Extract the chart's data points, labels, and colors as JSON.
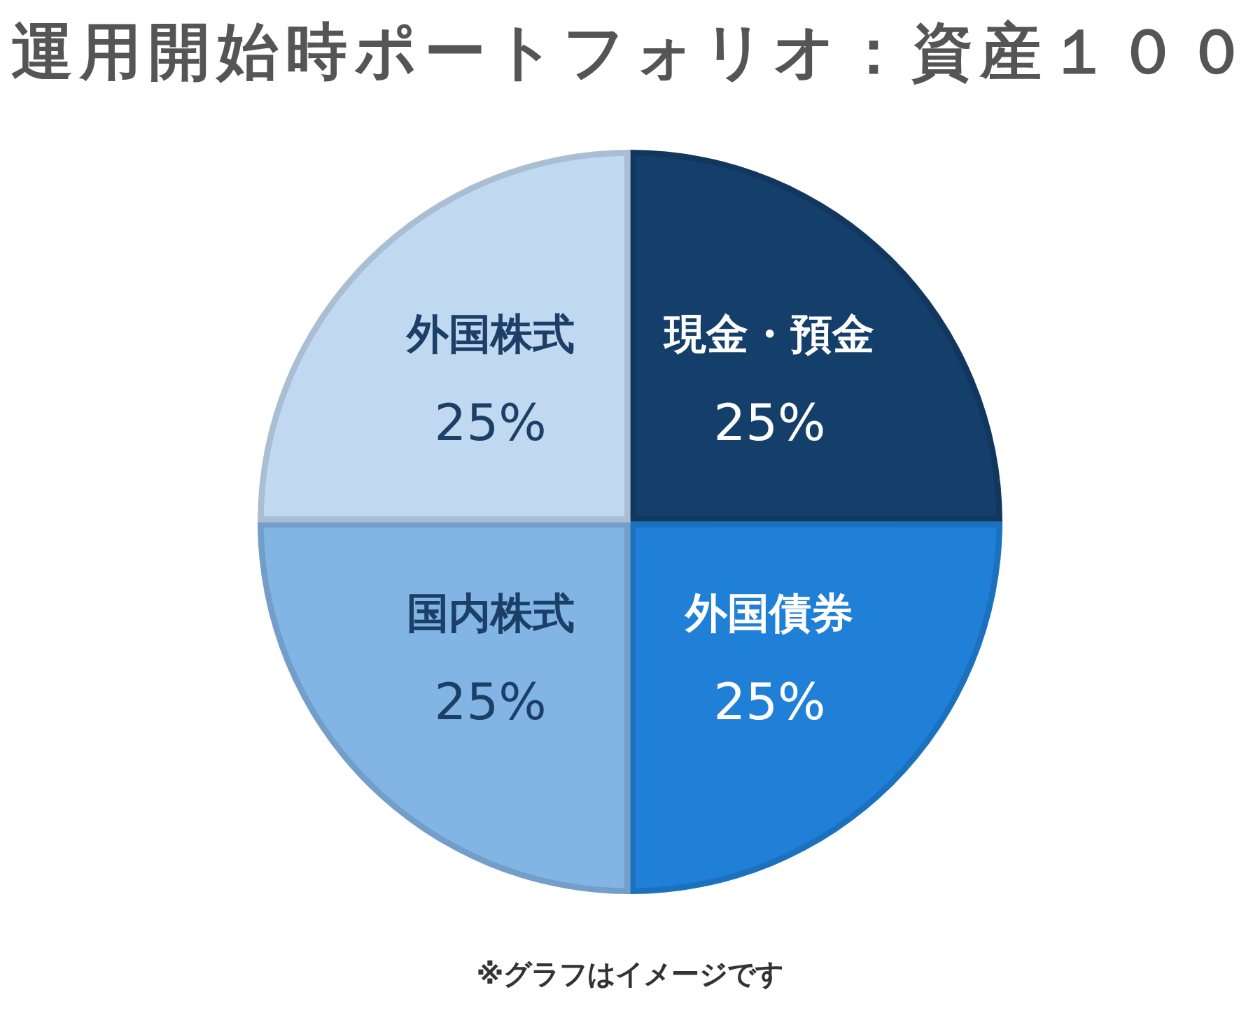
{
  "chart_data": {
    "type": "pie",
    "title": "運用開始時ポートフォリオ：資産１００",
    "categories": [
      "現金・預金",
      "外国債券",
      "国内株式",
      "外国株式"
    ],
    "values": [
      25,
      25,
      25,
      25
    ],
    "colors": [
      "#143f6b",
      "#2080d8",
      "#82b4e4",
      "#c0d8f0"
    ],
    "value_labels": [
      "25%",
      "25%",
      "25%",
      "25%"
    ],
    "annotations": [
      "※グラフはイメージです"
    ],
    "legend": false
  }
}
